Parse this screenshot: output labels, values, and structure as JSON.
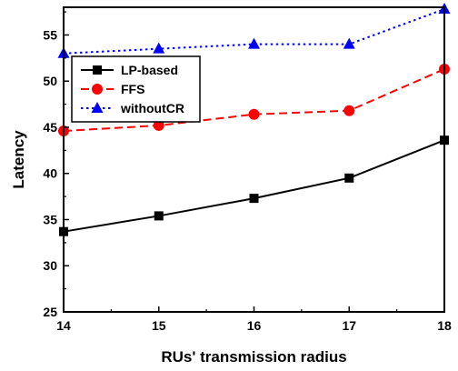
{
  "chart_data": {
    "type": "line",
    "title": "",
    "xlabel": "RUs' transmission radius",
    "ylabel": "Latency",
    "xlim": [
      14,
      18
    ],
    "ylim": [
      25,
      58
    ],
    "x": [
      14,
      15,
      16,
      17,
      18
    ],
    "xticks": [
      "14",
      "15",
      "16",
      "17",
      "18"
    ],
    "yticks": [
      "25",
      "30",
      "35",
      "40",
      "45",
      "50",
      "55"
    ],
    "legend_position": "upper-left",
    "grid": false,
    "series": [
      {
        "name": "LP-based",
        "values": [
          33.7,
          35.4,
          37.3,
          39.5,
          43.6
        ],
        "color": "#000000",
        "dash": "solid",
        "marker": "square"
      },
      {
        "name": "FFS",
        "values": [
          44.6,
          45.2,
          46.4,
          46.8,
          51.3
        ],
        "color": "#ff0000",
        "dash": "dashed",
        "marker": "circle"
      },
      {
        "name": "withoutCR",
        "values": [
          53.0,
          53.5,
          54.0,
          54.0,
          57.8
        ],
        "color": "#0000ff",
        "dash": "dotted",
        "marker": "triangle"
      }
    ]
  }
}
